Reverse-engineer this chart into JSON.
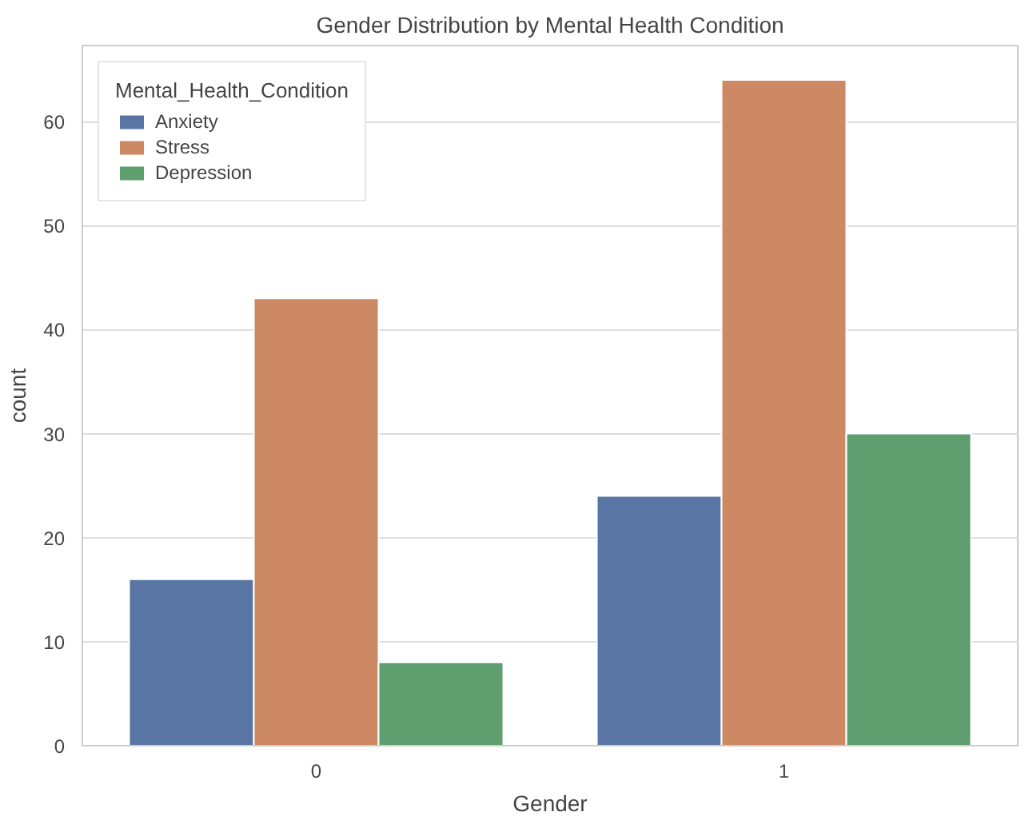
{
  "chart_data": {
    "type": "bar",
    "title": "Gender Distribution by Mental Health Condition",
    "xlabel": "Gender",
    "ylabel": "count",
    "legend_title": "Mental_Health_Condition",
    "categories": [
      "0",
      "1"
    ],
    "series": [
      {
        "name": "Anxiety",
        "color": "#5975a4",
        "values": [
          16,
          24
        ]
      },
      {
        "name": "Stress",
        "color": "#cc8963",
        "values": [
          43,
          64
        ]
      },
      {
        "name": "Depression",
        "color": "#5f9e6e",
        "values": [
          8,
          30
        ]
      }
    ],
    "ylim": [
      0,
      67.3
    ],
    "yticks": [
      0,
      10,
      20,
      30,
      40,
      50,
      60
    ],
    "grid": "y",
    "legend": "top left"
  }
}
